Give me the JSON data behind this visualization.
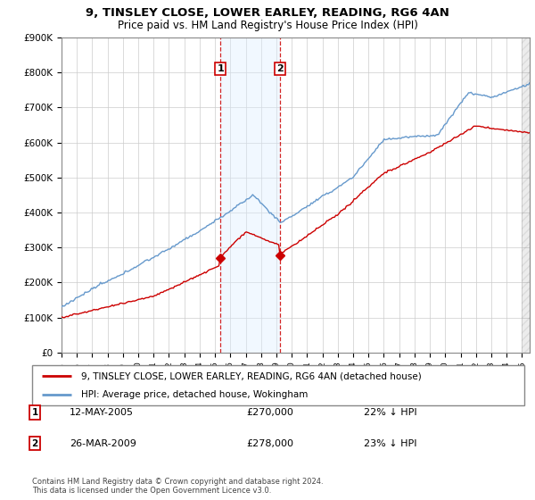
{
  "title": "9, TINSLEY CLOSE, LOWER EARLEY, READING, RG6 4AN",
  "subtitle": "Price paid vs. HM Land Registry's House Price Index (HPI)",
  "ylim": [
    0,
    900000
  ],
  "yticks": [
    0,
    100000,
    200000,
    300000,
    400000,
    500000,
    600000,
    700000,
    800000,
    900000
  ],
  "ytick_labels": [
    "£0",
    "£100K",
    "£200K",
    "£300K",
    "£400K",
    "£500K",
    "£600K",
    "£700K",
    "£800K",
    "£900K"
  ],
  "xlim_start": 1995.0,
  "xlim_end": 2025.5,
  "red_line_color": "#cc0000",
  "blue_line_color": "#6699cc",
  "vline_color": "#cc0000",
  "shade_color": "#ddeeff",
  "transaction1_x": 2005.36,
  "transaction1_y": 270000,
  "transaction1_label": "1",
  "transaction1_date": "12-MAY-2005",
  "transaction1_price": "£270,000",
  "transaction1_hpi": "22% ↓ HPI",
  "transaction2_x": 2009.23,
  "transaction2_y": 278000,
  "transaction2_label": "2",
  "transaction2_date": "26-MAR-2009",
  "transaction2_price": "£278,000",
  "transaction2_hpi": "23% ↓ HPI",
  "legend_line1": "9, TINSLEY CLOSE, LOWER EARLEY, READING, RG6 4AN (detached house)",
  "legend_line2": "HPI: Average price, detached house, Wokingham",
  "footer": "Contains HM Land Registry data © Crown copyright and database right 2024.\nThis data is licensed under the Open Government Licence v3.0.",
  "background_color": "#ffffff",
  "grid_color": "#cccccc"
}
